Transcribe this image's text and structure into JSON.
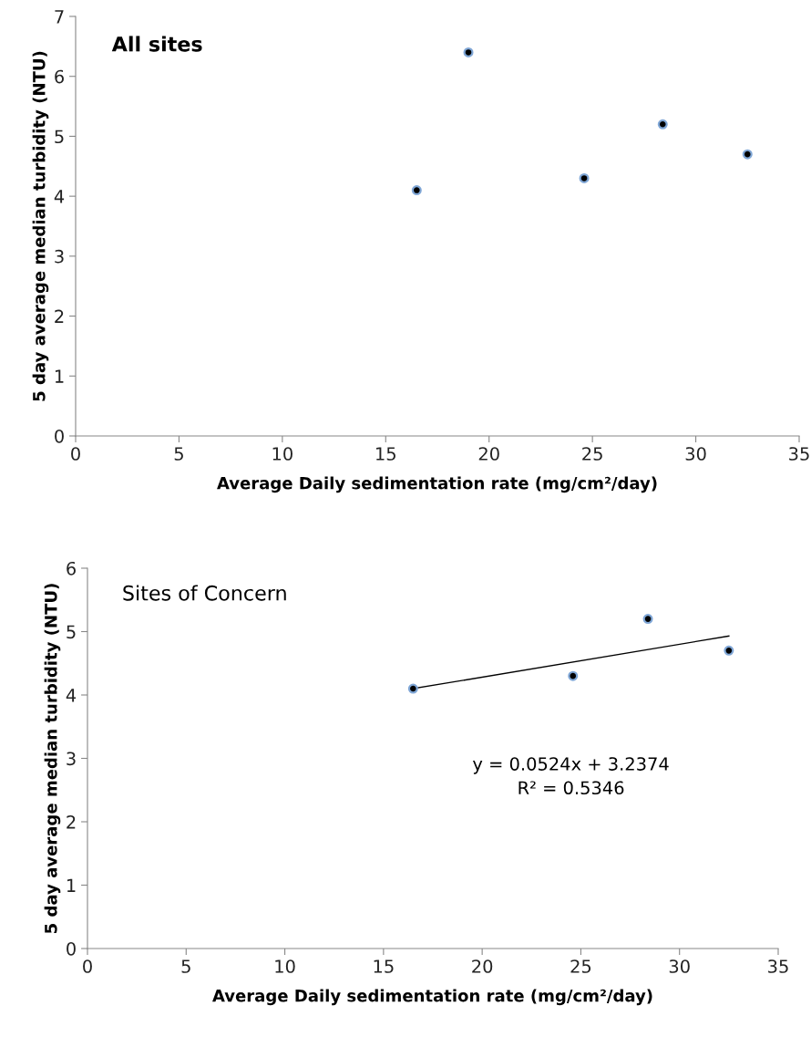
{
  "chart_data": [
    {
      "type": "scatter",
      "title": "All sites",
      "xlabel": "Average Daily sedimentation rate (mg/cm²/day)",
      "ylabel": "5 day average median turbidity (NTU)",
      "x": [
        16.5,
        19.0,
        24.6,
        28.4,
        32.5
      ],
      "values": [
        4.1,
        6.4,
        4.3,
        5.2,
        4.7
      ],
      "color": "#000000",
      "marker": "circle",
      "xlim": [
        0,
        35
      ],
      "xticks": [
        0,
        5,
        10,
        15,
        20,
        25,
        30,
        35
      ],
      "ylim": [
        0,
        7
      ],
      "yticks": [
        0,
        1,
        2,
        3,
        4,
        5,
        6,
        7
      ],
      "grid": false,
      "legend": false
    },
    {
      "type": "scatter",
      "title": "Sites of Concern",
      "xlabel": "Average Daily sedimentation rate (mg/cm²/day)",
      "ylabel": "5 day average median turbidity (NTU)",
      "series": [
        {
          "type": "scatter",
          "color": "#000000",
          "marker": "circle",
          "x": [
            16.5,
            24.6,
            28.4,
            32.5
          ],
          "values": [
            4.1,
            4.3,
            5.2,
            4.7
          ]
        },
        {
          "type": "line",
          "color": "#000000",
          "marker": "none",
          "x": [
            16.5,
            32.5
          ],
          "values": [
            4.1,
            4.93
          ]
        }
      ],
      "annotations": [
        "y = 0.0524x + 3.2374\nR² = 0.5346"
      ],
      "xlim": [
        0,
        35
      ],
      "xticks": [
        0,
        5,
        10,
        15,
        20,
        25,
        30,
        35
      ],
      "ylim": [
        0,
        6
      ],
      "yticks": [
        0,
        1,
        2,
        3,
        4,
        5,
        6
      ],
      "grid": false,
      "legend": false
    }
  ]
}
